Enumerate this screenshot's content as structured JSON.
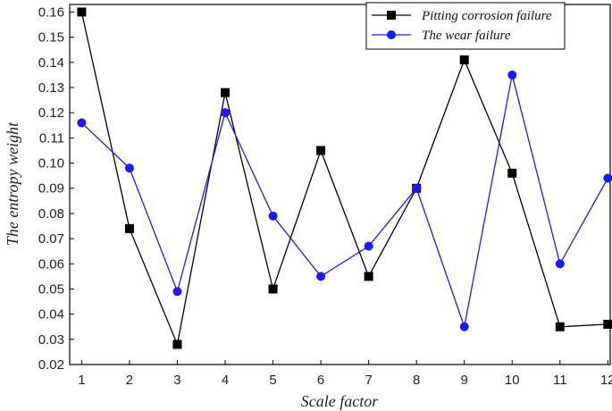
{
  "chart_data": {
    "type": "line",
    "xlabel": "Scale factor",
    "ylabel": "The entropy weight",
    "x": [
      1,
      2,
      3,
      4,
      5,
      6,
      7,
      8,
      9,
      10,
      11,
      12
    ],
    "xlim": [
      0.75,
      12.05
    ],
    "ylim": [
      0.02,
      0.163
    ],
    "yticks": [
      "0.02",
      "0.03",
      "0.04",
      "0.05",
      "0.06",
      "0.07",
      "0.08",
      "0.09",
      "0.10",
      "0.11",
      "0.12",
      "0.13",
      "0.14",
      "0.15",
      "0.16"
    ],
    "grid": false,
    "legend_position": "top-right",
    "series": [
      {
        "name": "Pitting corrosion failure",
        "color": "#000000",
        "marker": "square",
        "values": [
          0.16,
          0.074,
          0.028,
          0.128,
          0.05,
          0.105,
          0.055,
          0.09,
          0.141,
          0.096,
          0.035,
          0.036
        ]
      },
      {
        "name": "The wear failure",
        "color": "#1a1aff",
        "marker": "circle",
        "values": [
          0.116,
          0.098,
          0.049,
          0.12,
          0.079,
          0.055,
          0.067,
          0.09,
          0.035,
          0.135,
          0.06,
          0.094
        ]
      }
    ]
  }
}
